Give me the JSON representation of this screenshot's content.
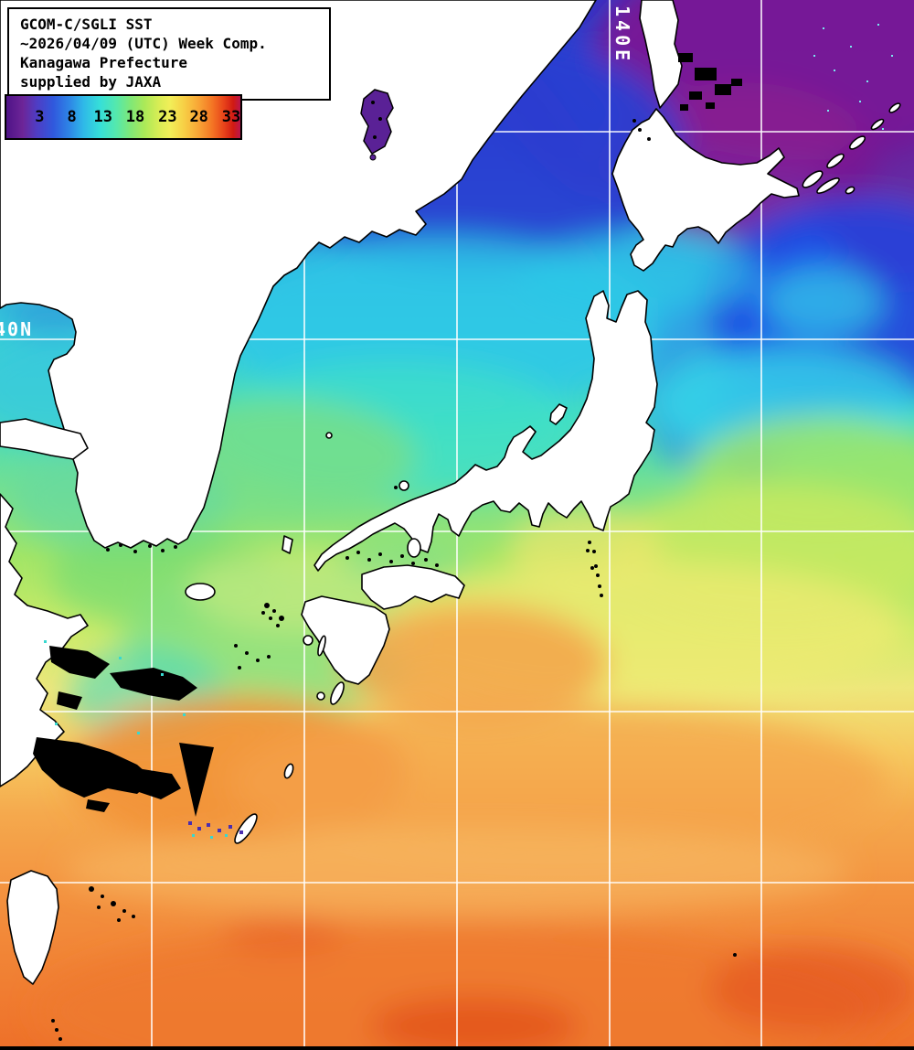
{
  "header": {
    "title_lines": [
      "GCOM-C/SGLI SST",
      "~2026/04/09 (UTC) Week Comp.",
      "Kanagawa Prefecture",
      "supplied by JAXA"
    ]
  },
  "colorbar": {
    "ticks": [
      "3",
      "8",
      "13",
      "18",
      "23",
      "28",
      "33"
    ],
    "tick_positions_pct": [
      14.2,
      28.0,
      41.3,
      55.1,
      68.9,
      82.3,
      96.1
    ],
    "gradient_stops": [
      {
        "p": 0,
        "c": "#4e1387"
      },
      {
        "p": 7,
        "c": "#6d2597"
      },
      {
        "p": 13,
        "c": "#4f3dc4"
      },
      {
        "p": 20,
        "c": "#3058dd"
      },
      {
        "p": 27,
        "c": "#2e86e6"
      },
      {
        "p": 33,
        "c": "#2fb9e8"
      },
      {
        "p": 40,
        "c": "#36dfd8"
      },
      {
        "p": 47,
        "c": "#55e8ac"
      },
      {
        "p": 53,
        "c": "#7fe878"
      },
      {
        "p": 59,
        "c": "#abe958"
      },
      {
        "p": 65,
        "c": "#d7ed55"
      },
      {
        "p": 70,
        "c": "#f2ee58"
      },
      {
        "p": 76,
        "c": "#f7cf45"
      },
      {
        "p": 82,
        "c": "#f8a636"
      },
      {
        "p": 88,
        "c": "#f47524"
      },
      {
        "p": 93,
        "c": "#e8431a"
      },
      {
        "p": 97,
        "c": "#d01a13"
      },
      {
        "p": 100,
        "c": "#bb164e"
      }
    ]
  },
  "grid_labels": {
    "meridian": "140E",
    "parallel": "40N"
  }
}
